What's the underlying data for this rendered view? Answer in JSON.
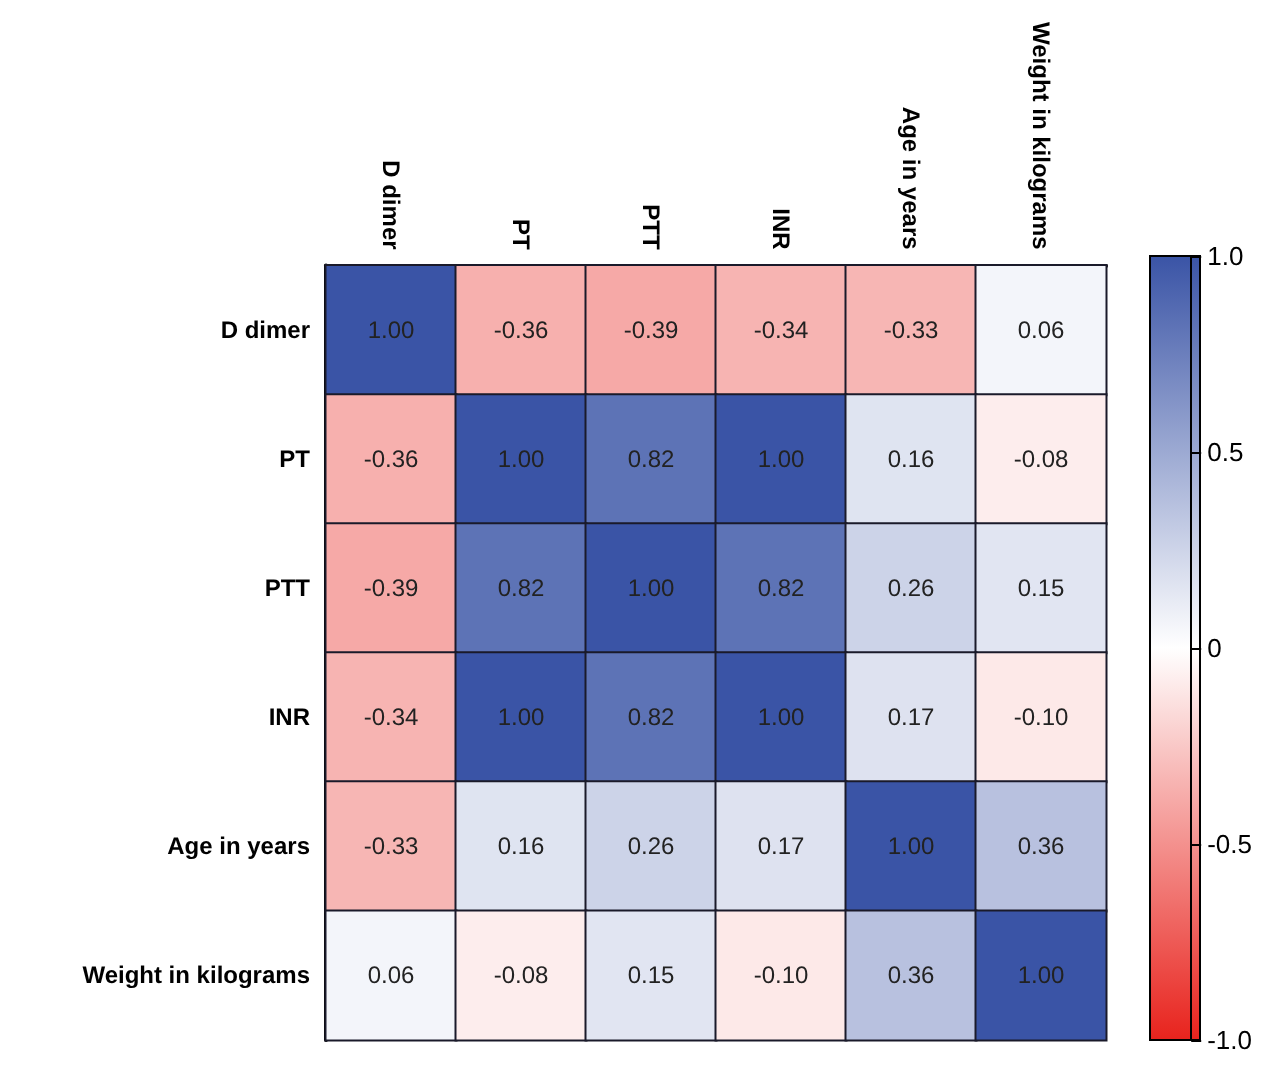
{
  "chart_data": {
    "type": "heatmap",
    "categories": [
      "D dimer",
      "PT",
      "PTT",
      "INR",
      "Age in years",
      "Weight in kilograms"
    ],
    "y_categories": [
      "D dimer",
      "PT",
      "PTT",
      "INR",
      "Age in years",
      "Weight in kilograms"
    ],
    "cells": [
      [
        1,
        -0.36,
        -0.39,
        -0.34,
        -0.33,
        0.06
      ],
      [
        -0.36,
        1,
        0.82,
        1,
        0.16,
        -0.08
      ],
      [
        -0.39,
        0.82,
        1,
        0.82,
        0.26,
        0.15
      ],
      [
        -0.34,
        1,
        0.82,
        1,
        0.17,
        -0.1
      ],
      [
        -0.33,
        0.16,
        0.26,
        0.17,
        1,
        0.36
      ],
      [
        0.06,
        -0.08,
        0.15,
        -0.1,
        0.36,
        1
      ]
    ],
    "cell_labels": [
      [
        "1.00",
        "-0.36",
        "-0.39",
        "-0.34",
        "-0.33",
        "0.06"
      ],
      [
        "-0.36",
        "1.00",
        "0.82",
        "1.00",
        "0.16",
        "-0.08"
      ],
      [
        "-0.39",
        "0.82",
        "1.00",
        "0.82",
        "0.26",
        "0.15"
      ],
      [
        "-0.34",
        "1.00",
        "0.82",
        "1.00",
        "0.17",
        "-0.10"
      ],
      [
        "-0.33",
        "0.16",
        "0.26",
        "0.17",
        "1.00",
        "0.36"
      ],
      [
        "0.06",
        "-0.08",
        "0.15",
        "-0.10",
        "0.36",
        "1.00"
      ]
    ],
    "clim": [
      -1,
      1
    ],
    "cticks": [
      {
        "value": -1,
        "label": "-1.0"
      },
      -0.5,
      0,
      0.5,
      {
        "value": 1,
        "label": "1.0"
      }
    ]
  }
}
